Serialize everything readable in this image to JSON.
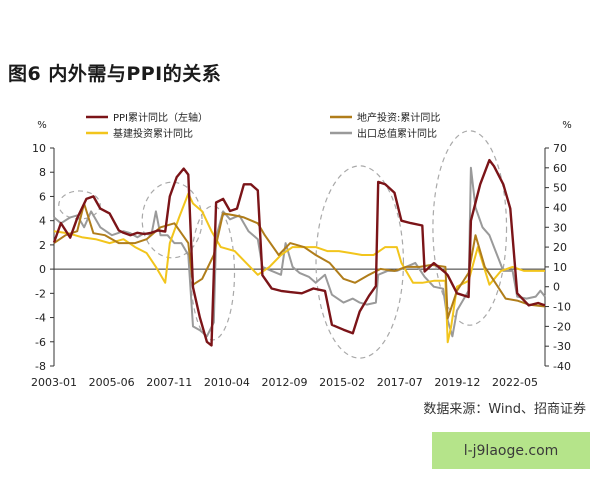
{
  "page": {
    "title": "图6  内外需与PPI的关系",
    "source": "数据来源：Wind、招商证券",
    "watermark": "l-j9laoge.com"
  },
  "chart_data": {
    "type": "line",
    "left_axis": {
      "unit": "%",
      "ylim": [
        -8,
        10
      ],
      "ticks": [
        "10",
        "8",
        "6",
        "4",
        "2",
        "0",
        "-2",
        "-4",
        "-6",
        "-8"
      ]
    },
    "right_axis": {
      "unit": "%",
      "ylim": [
        -40,
        70
      ],
      "ticks": [
        "70",
        "60",
        "50",
        "40",
        "30",
        "20",
        "10",
        "0",
        "-10",
        "-20",
        "-30",
        "-40"
      ]
    },
    "x_ticks": [
      "2003-01",
      "2005-06",
      "2007-11",
      "2010-04",
      "2012-09",
      "2015-02",
      "2017-07",
      "2019-12",
      "2022-05"
    ],
    "x_range": [
      2003.0,
      2024.2
    ],
    "grid": false,
    "legend": [
      {
        "label": "PPI累计同比（左轴）",
        "color": "#7b1418"
      },
      {
        "label": "地产投资:累计同比",
        "color": "#b07d1a"
      },
      {
        "label": "基建投资累计同比",
        "color": "#f2c51c"
      },
      {
        "label": "出口总值累计同比",
        "color": "#9a9a9a"
      }
    ],
    "series": [
      {
        "name": "PPI累计同比（左轴）",
        "axis": "left",
        "color": "#7b1418",
        "x": [
          2003.0,
          2003.3,
          2003.7,
          2004.0,
          2004.4,
          2004.7,
          2005.0,
          2005.4,
          2005.8,
          2006.0,
          2006.3,
          2006.6,
          2006.9,
          2007.2,
          2007.5,
          2007.8,
          2008.0,
          2008.3,
          2008.6,
          2008.8,
          2009.0,
          2009.3,
          2009.6,
          2009.8,
          2010.0,
          2010.3,
          2010.6,
          2010.9,
          2011.2,
          2011.5,
          2011.8,
          2012.0,
          2012.4,
          2012.8,
          2013.2,
          2013.7,
          2014.2,
          2014.7,
          2015.0,
          2015.5,
          2015.9,
          2016.2,
          2016.6,
          2016.9,
          2017.0,
          2017.3,
          2017.7,
          2018.0,
          2018.4,
          2018.9,
          2019.0,
          2019.4,
          2019.9,
          2020.0,
          2020.4,
          2020.9,
          2021.0,
          2021.4,
          2021.8,
          2022.0,
          2022.4,
          2022.7,
          2023.0,
          2023.5,
          2023.9,
          2024.2
        ],
        "y": [
          2.2,
          3.8,
          2.6,
          4.2,
          5.8,
          6.0,
          5.0,
          4.6,
          3.2,
          3.0,
          2.8,
          3.0,
          2.9,
          3.0,
          3.2,
          3.1,
          6.0,
          7.6,
          8.3,
          7.8,
          -1.5,
          -4.0,
          -6.0,
          -6.3,
          5.5,
          5.8,
          4.8,
          5.0,
          7.0,
          7.0,
          6.5,
          -0.5,
          -1.6,
          -1.8,
          -1.9,
          -2.0,
          -1.6,
          -1.8,
          -4.6,
          -5.0,
          -5.3,
          -3.5,
          -2.2,
          -1.4,
          7.2,
          7.0,
          6.3,
          4.0,
          3.8,
          3.6,
          -0.2,
          0.5,
          -0.3,
          -0.5,
          -2.0,
          -2.3,
          4.0,
          7.0,
          9.0,
          8.5,
          7.0,
          5.0,
          -2.0,
          -3.0,
          -2.8,
          -3.0
        ]
      },
      {
        "name": "地产投资:累计同比",
        "axis": "right",
        "color": "#b07d1a",
        "x": [
          2003.0,
          2003.5,
          2004.0,
          2004.3,
          2004.7,
          2005.2,
          2005.8,
          2006.5,
          2007.0,
          2007.6,
          2008.2,
          2008.8,
          2009.0,
          2009.4,
          2009.9,
          2010.3,
          2010.8,
          2011.2,
          2011.8,
          2012.1,
          2012.7,
          2013.2,
          2013.8,
          2014.3,
          2014.9,
          2015.5,
          2016.0,
          2016.6,
          2017.1,
          2017.7,
          2018.2,
          2018.8,
          2019.3,
          2019.9,
          2020.0,
          2020.4,
          2020.9,
          2021.2,
          2021.6,
          2022.0,
          2022.5,
          2023.0,
          2023.5,
          2024.2
        ],
        "y": [
          22,
          26,
          28,
          42,
          27,
          26,
          22,
          22,
          24,
          30,
          32,
          22,
          1,
          4,
          16,
          37,
          36,
          35,
          32,
          26,
          16,
          22,
          20,
          16,
          12,
          4,
          2,
          6,
          9,
          8,
          10,
          10,
          11,
          10,
          -16,
          -2,
          7,
          26,
          10,
          3,
          -6,
          -7,
          -9,
          -10
        ]
      },
      {
        "name": "基建投资累计同比",
        "axis": "right",
        "color": "#f2c51c",
        "x": [
          2003.0,
          2003.6,
          2004.2,
          2004.8,
          2005.4,
          2006.0,
          2006.5,
          2007.0,
          2007.4,
          2007.8,
          2008.0,
          2008.4,
          2008.8,
          2009.0,
          2009.4,
          2009.8,
          2010.2,
          2010.8,
          2011.3,
          2011.8,
          2012.3,
          2012.8,
          2013.3,
          2013.8,
          2014.3,
          2014.8,
          2015.3,
          2015.8,
          2016.3,
          2016.8,
          2017.3,
          2017.8,
          2018.0,
          2018.5,
          2018.9,
          2019.4,
          2019.9,
          2020.0,
          2020.15,
          2020.4,
          2020.9,
          2021.3,
          2021.8,
          2022.3,
          2022.8,
          2023.3,
          2023.8,
          2024.2
        ],
        "y": [
          28,
          27,
          25,
          24,
          22,
          24,
          20,
          17,
          10,
          2,
          22,
          35,
          47,
          42,
          38,
          28,
          20,
          18,
          12,
          6,
          10,
          16,
          20,
          20,
          20,
          18,
          18,
          17,
          16,
          16,
          20,
          20,
          12,
          2,
          2,
          3,
          3,
          -28,
          -20,
          0,
          3,
          20,
          1,
          8,
          10,
          8,
          8,
          8
        ]
      },
      {
        "name": "出口总值累计同比",
        "axis": "right",
        "color": "#9a9a9a",
        "x": [
          2003.0,
          2003.3,
          2003.7,
          2004.0,
          2004.3,
          2004.6,
          2005.0,
          2005.5,
          2006.0,
          2006.3,
          2006.6,
          2006.9,
          2007.2,
          2007.4,
          2007.6,
          2007.9,
          2008.2,
          2008.5,
          2008.8,
          2009.0,
          2009.3,
          2009.6,
          2009.9,
          2010.0,
          2010.3,
          2010.6,
          2011.0,
          2011.4,
          2011.8,
          2012.0,
          2012.4,
          2012.8,
          2013.0,
          2013.3,
          2013.6,
          2014.0,
          2014.3,
          2014.7,
          2015.0,
          2015.5,
          2015.9,
          2016.2,
          2016.5,
          2016.9,
          2017.0,
          2017.4,
          2017.8,
          2018.2,
          2018.6,
          2019.0,
          2019.4,
          2019.8,
          2020.0,
          2020.2,
          2020.4,
          2020.9,
          2021.0,
          2021.2,
          2021.5,
          2021.8,
          2022.0,
          2022.4,
          2022.8,
          2023.0,
          2023.4,
          2023.8,
          2024.0,
          2024.2
        ],
        "y": [
          35,
          32,
          35,
          36,
          30,
          38,
          30,
          26,
          28,
          27,
          25,
          27,
          26,
          38,
          26,
          26,
          22,
          22,
          16,
          -20,
          -22,
          -25,
          -18,
          25,
          38,
          34,
          36,
          28,
          24,
          10,
          8,
          6,
          22,
          10,
          7,
          5,
          2,
          6,
          -4,
          -8,
          -6,
          -8,
          -9,
          -8,
          6,
          8,
          8,
          10,
          12,
          5,
          0,
          -1,
          -17,
          -25,
          -12,
          -2,
          60,
          40,
          30,
          26,
          20,
          8,
          8,
          -5,
          -6,
          -5,
          -2,
          -5
        ]
      }
    ]
  }
}
